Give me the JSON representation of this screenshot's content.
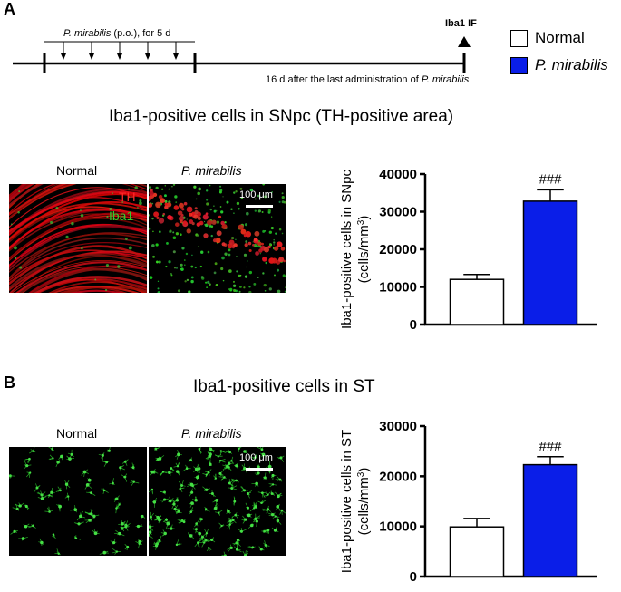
{
  "panel_a": {
    "letter": "A",
    "timeline": {
      "dosing_label_italic": "P. mirabilis",
      "dosing_label_rest": " (p.o.), for 5 d",
      "endpoint_label": "Iba1 IF",
      "gap_label_prefix": "16 d after the last administration of ",
      "gap_label_italic": "P. mirabilis",
      "dose_count": 5
    },
    "title": "Iba1-positive cells in SNpc (TH-positive area)",
    "micrograph": {
      "normal_label": "Normal",
      "pm_label": "P. mirabilis",
      "th_label": "TH",
      "iba1_label": "Iba1",
      "scale_label": "100 μm"
    }
  },
  "panel_b": {
    "letter": "B",
    "title": "Iba1-positive cells in ST",
    "micrograph": {
      "normal_label": "Normal",
      "pm_label": "P. mirabilis",
      "scale_label": "100 μm"
    }
  },
  "legend": {
    "items": [
      {
        "label": "Normal",
        "color": "#ffffff"
      },
      {
        "label": "P. mirabilis",
        "color": "#0a1ee8"
      }
    ]
  },
  "chart_data": [
    {
      "type": "bar",
      "categories": [
        "Normal",
        "P. mirabilis"
      ],
      "values": [
        12000,
        32800
      ],
      "errors": [
        1300,
        3000
      ],
      "colors": [
        "#ffffff",
        "#0a1ee8"
      ],
      "annotations": [
        "",
        "###"
      ],
      "ylabel_line1": "Iba1-positive cells in SNpc",
      "ylabel_line2": "(cells/mm",
      "ylabel_sup": "3",
      "ylabel_end": ")",
      "ylim": [
        0,
        40000
      ],
      "yticks": [
        0,
        10000,
        20000,
        30000,
        40000
      ],
      "ytick_labels": [
        "0",
        "10000",
        "20000",
        "30000",
        "40000"
      ]
    },
    {
      "type": "bar",
      "categories": [
        "Normal",
        "P. mirabilis"
      ],
      "values": [
        9900,
        22300
      ],
      "errors": [
        1700,
        1600
      ],
      "colors": [
        "#ffffff",
        "#0a1ee8"
      ],
      "annotations": [
        "",
        "###"
      ],
      "ylabel_line1": "Iba1-positive cells in ST",
      "ylabel_line2": "(cells/mm",
      "ylabel_sup": "3",
      "ylabel_end": ")",
      "ylim": [
        0,
        30000
      ],
      "yticks": [
        0,
        10000,
        20000,
        30000
      ],
      "ytick_labels": [
        "0",
        "10000",
        "20000",
        "30000"
      ]
    }
  ]
}
